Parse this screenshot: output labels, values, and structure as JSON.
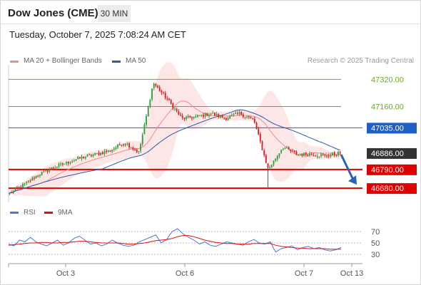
{
  "header": {
    "title": "Dow Jones (CME)",
    "interval": "30 MIN",
    "datetime": "Tuesday, October 7, 2025 7:08:24 AM CET"
  },
  "legend": {
    "items": [
      {
        "label": "MA 20 + Bollinger Bands",
        "color": "#f08c8c"
      },
      {
        "label": "MA 50",
        "color": "#2a5aa8"
      }
    ],
    "credit": "Research © 2025 Trading Central"
  },
  "chart_data": [
    {
      "type": "candlestick",
      "title": "",
      "xlabel": "",
      "ylabel": "",
      "ylim": [
        46605,
        47380
      ],
      "x_ticks": [
        "Oct 3",
        "Oct 6",
        "Oct 7",
        "Oct 13"
      ],
      "levels": [
        {
          "value": 47320.0,
          "label": "47320.00",
          "kind": "resistance",
          "color": "#6aaa2a"
        },
        {
          "value": 47160.0,
          "label": "47160.00",
          "kind": "resistance",
          "color": "#6aaa2a"
        },
        {
          "value": 47035.0,
          "label": "47035.00",
          "kind": "pivot",
          "color": "#1f5fc8"
        },
        {
          "value": 46886.0,
          "label": "46886.00",
          "kind": "last_price",
          "color": "#333333"
        },
        {
          "value": 46790.0,
          "label": "46790.00",
          "kind": "support",
          "color": "#e00000"
        },
        {
          "value": 46680.0,
          "label": "46680.00",
          "kind": "support",
          "color": "#e00000"
        }
      ],
      "series": [
        {
          "name": "MA 20 + Bollinger Bands",
          "indicator": "bollinger",
          "color": "#f08c8c"
        },
        {
          "name": "MA 50",
          "indicator": "sma",
          "color": "#2a5aa8"
        }
      ],
      "forecast": {
        "direction": "down",
        "from": 46886,
        "to": 46680,
        "color": "#2c64b4"
      },
      "close_anchors": [
        46650,
        46700,
        46760,
        46800,
        46830,
        46860,
        46880,
        46900,
        46950,
        46890,
        47300,
        47200,
        47090,
        47100,
        47120,
        47090,
        47120,
        47080,
        46790,
        46920,
        46880,
        46880,
        46870,
        46886
      ],
      "candle_count": 175
    },
    {
      "type": "line",
      "title": "",
      "ylim": [
        20,
        80
      ],
      "y_ticks": [
        70,
        50,
        30
      ],
      "series": [
        {
          "name": "RSI",
          "color": "#4a78d8",
          "values": [
            48,
            45,
            55,
            52,
            60,
            52,
            48,
            45,
            50,
            55,
            46,
            50,
            58,
            62,
            55,
            48,
            50,
            45,
            48,
            55,
            50,
            46,
            44,
            46,
            52,
            56,
            60,
            64,
            50,
            56,
            70,
            75,
            66,
            60,
            55,
            48,
            52,
            46,
            44,
            48,
            52,
            50,
            48,
            46,
            52,
            56,
            50,
            48,
            52,
            34,
            40,
            42,
            45,
            38,
            42,
            44,
            40,
            42,
            38,
            36,
            38,
            42
          ]
        },
        {
          "name": "9MA",
          "color": "#e01010",
          "values": [
            46,
            47,
            48,
            49,
            50,
            50,
            51,
            51,
            50,
            50,
            51,
            51,
            52,
            53,
            53,
            52,
            51,
            50,
            50,
            50,
            50,
            49,
            48,
            48,
            49,
            50,
            52,
            54,
            55,
            56,
            58,
            61,
            63,
            63,
            61,
            58,
            55,
            53,
            51,
            50,
            49,
            49,
            48,
            48,
            48,
            49,
            49,
            49,
            49,
            46,
            44,
            43,
            42,
            41,
            41,
            40,
            40,
            40,
            40,
            39,
            39,
            39
          ]
        }
      ]
    }
  ]
}
